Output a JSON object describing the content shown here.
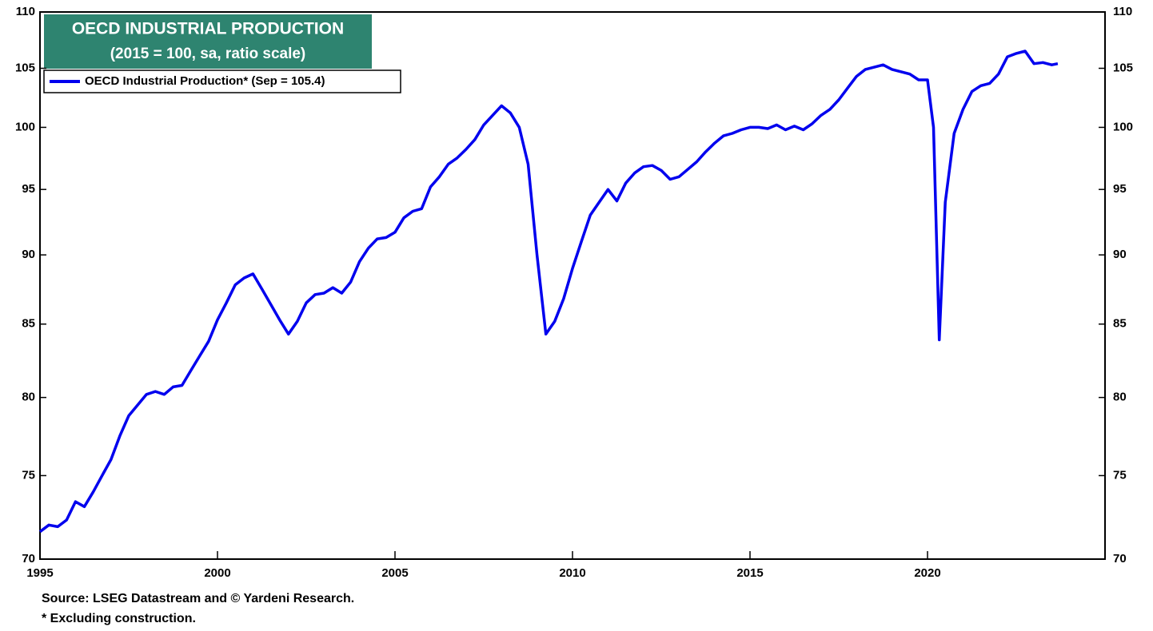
{
  "chart_data": {
    "type": "line",
    "title": "OECD INDUSTRIAL PRODUCTION",
    "subtitle": "(2015 = 100, sa, ratio scale)",
    "source": "Source: LSEG Datastream and © Yardeni Research.",
    "note": "* Excluding construction.",
    "log_scale": true,
    "legend": "upper left",
    "xlim": [
      1995,
      2025
    ],
    "xticks": [
      1995,
      2000,
      2005,
      2010,
      2015,
      2020
    ],
    "ylim": [
      70,
      110
    ],
    "yticks": [
      70,
      75,
      80,
      85,
      90,
      95,
      100,
      105,
      110
    ],
    "x": [
      1995.0,
      1995.25,
      1995.5,
      1995.75,
      1996.0,
      1996.25,
      1996.5,
      1996.75,
      1997.0,
      1997.25,
      1997.5,
      1997.75,
      1998.0,
      1998.25,
      1998.5,
      1998.75,
      1999.0,
      1999.25,
      1999.5,
      1999.75,
      2000.0,
      2000.25,
      2000.5,
      2000.75,
      2001.0,
      2001.25,
      2001.5,
      2001.75,
      2002.0,
      2002.25,
      2002.5,
      2002.75,
      2003.0,
      2003.25,
      2003.5,
      2003.75,
      2004.0,
      2004.25,
      2004.5,
      2004.75,
      2005.0,
      2005.25,
      2005.5,
      2005.75,
      2006.0,
      2006.25,
      2006.5,
      2006.75,
      2007.0,
      2007.25,
      2007.5,
      2007.75,
      2008.0,
      2008.25,
      2008.5,
      2008.75,
      2009.0,
      2009.25,
      2009.5,
      2009.75,
      2010.0,
      2010.25,
      2010.5,
      2010.75,
      2011.0,
      2011.25,
      2011.5,
      2011.75,
      2012.0,
      2012.25,
      2012.5,
      2012.75,
      2013.0,
      2013.25,
      2013.5,
      2013.75,
      2014.0,
      2014.25,
      2014.5,
      2014.75,
      2015.0,
      2015.25,
      2015.5,
      2015.75,
      2016.0,
      2016.25,
      2016.5,
      2016.75,
      2017.0,
      2017.25,
      2017.5,
      2017.75,
      2018.0,
      2018.25,
      2018.5,
      2018.75,
      2019.0,
      2019.25,
      2019.5,
      2019.75,
      2020.0,
      2020.17,
      2020.33,
      2020.5,
      2020.75,
      2021.0,
      2021.25,
      2021.5,
      2021.75,
      2022.0,
      2022.25,
      2022.5,
      2022.75,
      2023.0,
      2023.25,
      2023.5,
      2023.67
    ],
    "series": [
      {
        "name": "OECD Industrial Production* (Sep = 105.4)",
        "color": "#0000ee",
        "values": [
          71.6,
          72.0,
          71.9,
          72.3,
          73.4,
          73.1,
          74.0,
          75.0,
          76.0,
          77.5,
          78.8,
          79.5,
          80.2,
          80.4,
          80.2,
          80.7,
          80.8,
          81.8,
          82.8,
          83.8,
          85.3,
          86.5,
          87.8,
          88.3,
          88.6,
          87.5,
          86.4,
          85.3,
          84.3,
          85.2,
          86.5,
          87.1,
          87.2,
          87.6,
          87.2,
          88.0,
          89.5,
          90.5,
          91.2,
          91.3,
          91.7,
          92.8,
          93.3,
          93.5,
          95.2,
          96.0,
          97.0,
          97.5,
          98.2,
          99.0,
          100.2,
          101.0,
          101.8,
          101.2,
          100.0,
          97.0,
          90.0,
          84.3,
          85.2,
          86.8,
          89.0,
          91.0,
          93.0,
          94.0,
          95.0,
          94.1,
          95.5,
          96.3,
          96.8,
          96.9,
          96.5,
          95.8,
          96.0,
          96.6,
          97.2,
          98.0,
          98.7,
          99.3,
          99.5,
          99.8,
          100.0,
          100.0,
          99.9,
          100.2,
          99.8,
          100.1,
          99.8,
          100.3,
          101.0,
          101.5,
          102.3,
          103.3,
          104.3,
          104.9,
          105.1,
          105.3,
          104.9,
          104.7,
          104.5,
          104.0,
          104.0,
          100.0,
          83.9,
          94.0,
          99.5,
          101.5,
          103.0,
          103.5,
          103.7,
          104.5,
          106.0,
          106.3,
          106.5,
          105.4,
          105.5,
          105.3,
          105.4
        ]
      }
    ]
  }
}
